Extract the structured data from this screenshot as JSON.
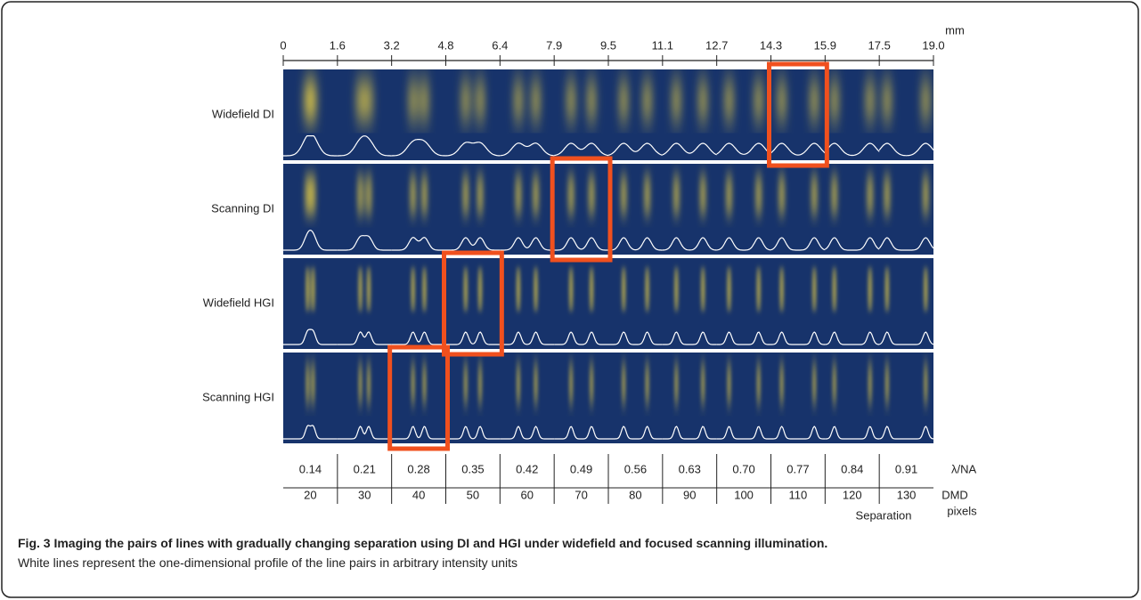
{
  "scale": {
    "unit": "mm",
    "ticks": [
      "0",
      "1.6",
      "3.2",
      "4.8",
      "6.4",
      "7.9",
      "9.5",
      "11.1",
      "12.7",
      "14.3",
      "15.9",
      "17.5",
      "19.0"
    ]
  },
  "rows": [
    "Widefield DI",
    "Scanning DI",
    "Widefield HGI",
    "Scanning HGI"
  ],
  "table": {
    "lambda_na": {
      "label": "λ/NA",
      "values": [
        "0.14",
        "0.21",
        "0.28",
        "0.35",
        "0.42",
        "0.49",
        "0.56",
        "0.63",
        "0.70",
        "0.77",
        "0.84",
        "0.91"
      ]
    },
    "dmd": {
      "label_1": "DMD",
      "label_2": "pixels",
      "values": [
        "20",
        "30",
        "40",
        "50",
        "60",
        "70",
        "80",
        "90",
        "100",
        "110",
        "120",
        "130"
      ]
    },
    "axis_label": "Separation"
  },
  "caption": {
    "title": "Fig. 3 Imaging the pairs of lines with gradually changing separation using DI and HGI under widefield and focused scanning illumination.",
    "text": "White lines represent the one-dimensional profile of the line pairs in arbitrary intensity units"
  }
}
